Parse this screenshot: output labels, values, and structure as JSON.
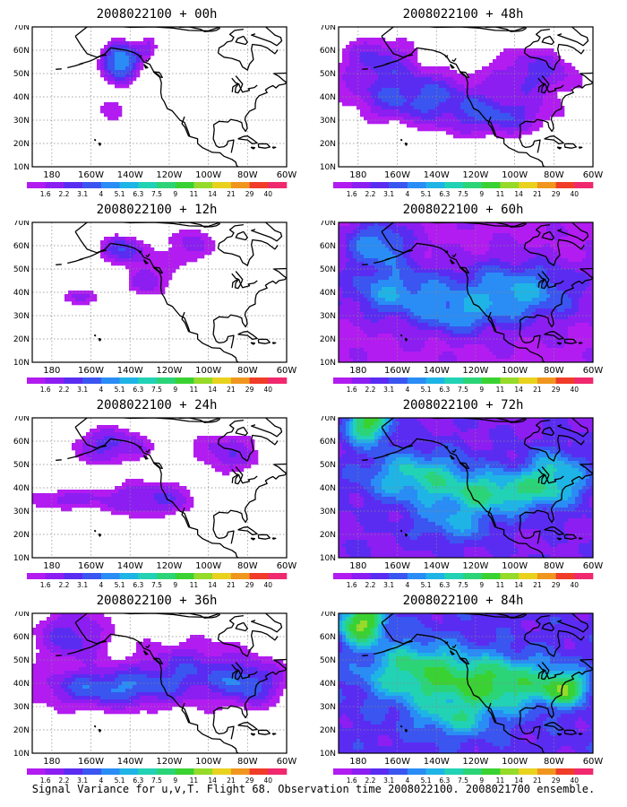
{
  "panels": [
    {
      "title": "2008022100 + 00h",
      "lead_hours": 0
    },
    {
      "title": "2008022100 + 48h",
      "lead_hours": 48
    },
    {
      "title": "2008022100 + 12h",
      "lead_hours": 12
    },
    {
      "title": "2008022100 + 60h",
      "lead_hours": 60
    },
    {
      "title": "2008022100 + 24h",
      "lead_hours": 24
    },
    {
      "title": "2008022100 + 72h",
      "lead_hours": 72
    },
    {
      "title": "2008022100 + 36h",
      "lead_hours": 36
    },
    {
      "title": "2008022100 + 84h",
      "lead_hours": 84
    }
  ],
  "map": {
    "lat_labels": [
      "10N",
      "20N",
      "30N",
      "40N",
      "50N",
      "60N",
      "70N"
    ],
    "lon_labels": [
      "180",
      "160W",
      "140W",
      "120W",
      "100W",
      "80W",
      "60W"
    ],
    "lat_range": [
      10,
      70
    ],
    "lon_range": [
      -190,
      -60
    ],
    "gridlines": "dotted",
    "land_outline_color": "#000000"
  },
  "colorbar": {
    "labels": [
      "1.6",
      "2.2",
      "3.1",
      "4",
      "5.1",
      "6.3",
      "7.5",
      "9",
      "11",
      "14",
      "21",
      "29",
      "40"
    ],
    "colors": [
      "#b21cf0",
      "#8c1ef2",
      "#5a2cf2",
      "#3a55f0",
      "#2a8cf5",
      "#1fb4e6",
      "#22d2b4",
      "#2cd478",
      "#3ad232",
      "#96da2a",
      "#e8d21e",
      "#f0961e",
      "#f03c28",
      "#f0286e"
    ]
  },
  "footer": "Signal Variance for u,v,T. Flight 68. Observation time 2008022100. 2008021700 ensemble."
}
